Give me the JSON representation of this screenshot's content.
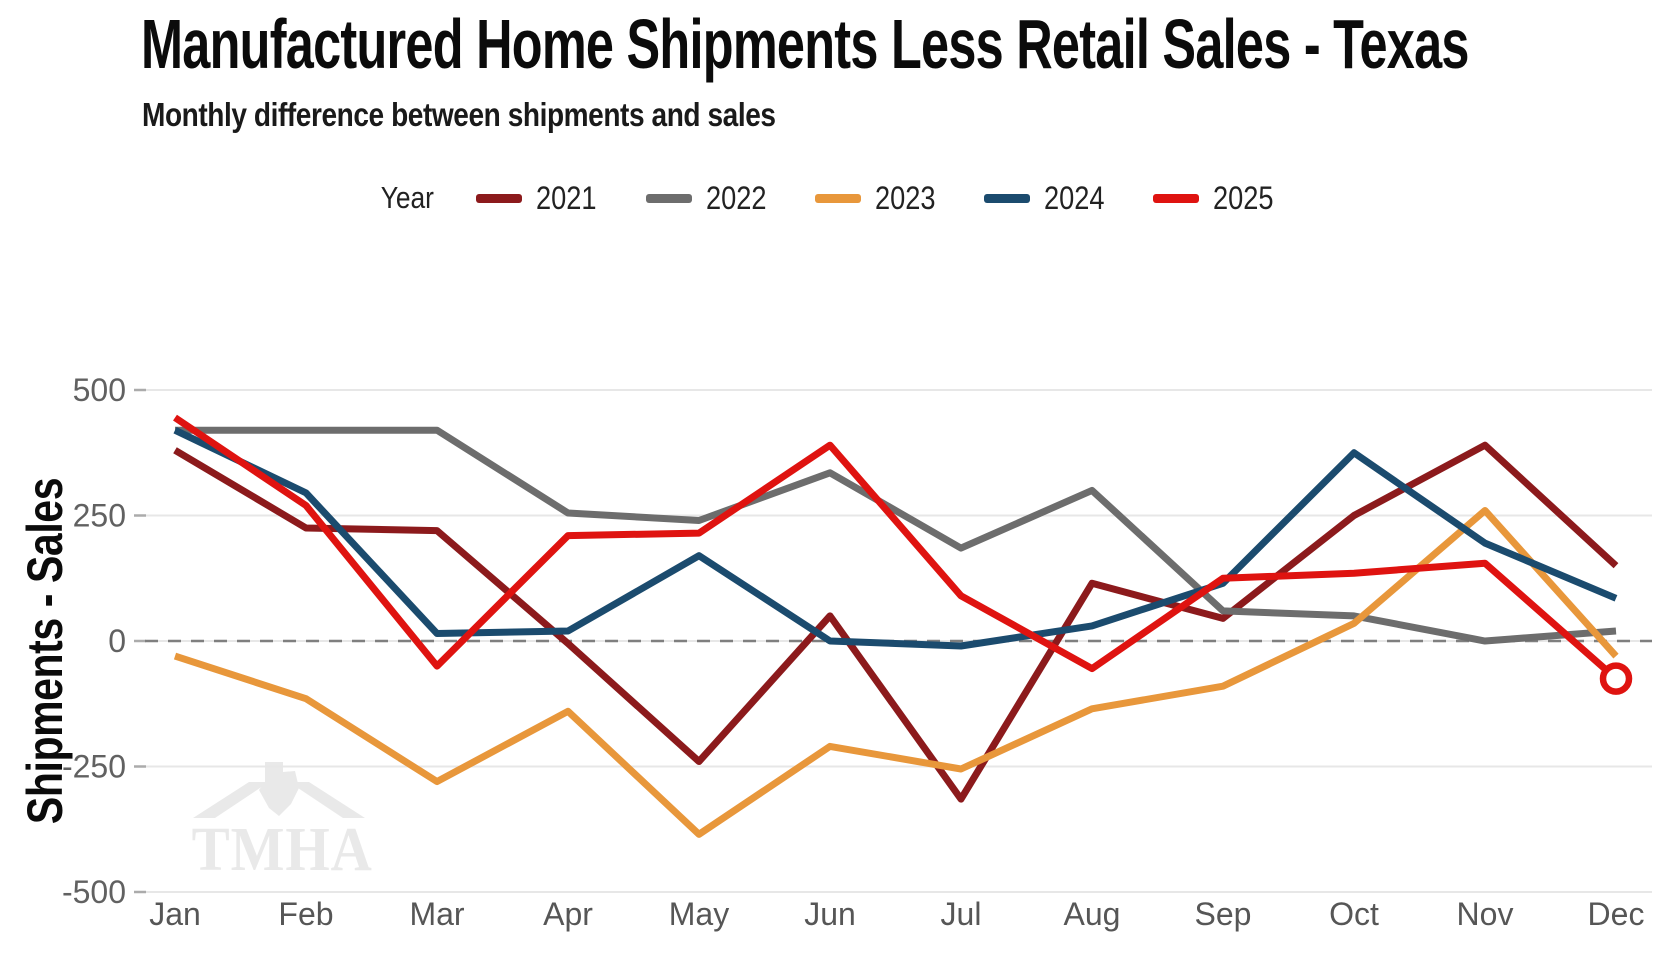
{
  "header": {
    "title": "Manufactured Home Shipments Less Retail Sales - Texas",
    "subtitle": "Monthly difference between shipments and sales"
  },
  "legend": {
    "label": "Year",
    "position": "top"
  },
  "watermark": {
    "text": "TMHA"
  },
  "chart_data": {
    "type": "line",
    "title": "Manufactured Home Shipments Less Retail Sales - Texas",
    "subtitle": "Monthly difference between shipments and sales",
    "xlabel": "",
    "ylabel": "Shipments - Sales",
    "categories": [
      "Jan",
      "Feb",
      "Mar",
      "Apr",
      "May",
      "Jun",
      "Jul",
      "Aug",
      "Sep",
      "Oct",
      "Nov",
      "Dec"
    ],
    "ylim": [
      -500,
      500
    ],
    "yticks": [
      500,
      250,
      0,
      -250,
      -500
    ],
    "grid": "horizontal",
    "zero_line": "dashed",
    "legend_position": "top",
    "series": [
      {
        "name": "2021",
        "color": "#8c1a1c",
        "values": [
          380,
          225,
          220,
          -5,
          -240,
          50,
          -315,
          115,
          45,
          250,
          390,
          150
        ]
      },
      {
        "name": "2022",
        "color": "#6d6d6d",
        "values": [
          420,
          420,
          420,
          255,
          240,
          335,
          185,
          300,
          60,
          50,
          0,
          20
        ]
      },
      {
        "name": "2023",
        "color": "#e8973b",
        "values": [
          -30,
          -115,
          -280,
          -140,
          -385,
          -210,
          -255,
          -135,
          -90,
          35,
          260,
          -30
        ]
      },
      {
        "name": "2024",
        "color": "#1b4b6e",
        "values": [
          420,
          295,
          15,
          20,
          170,
          0,
          -10,
          30,
          115,
          375,
          195,
          85
        ]
      },
      {
        "name": "2025",
        "color": "#df1310",
        "values": [
          445,
          270,
          -50,
          210,
          215,
          390,
          90,
          -55,
          125,
          135,
          155,
          -75
        ]
      }
    ],
    "end_marker": {
      "series": "2025",
      "category": "Dec",
      "style": "open-circle"
    },
    "colors": {
      "grid": "#e7e7e7",
      "zero_line": "#7f7f7f",
      "tick_text": "#616161",
      "axis_text": "#565656"
    }
  }
}
